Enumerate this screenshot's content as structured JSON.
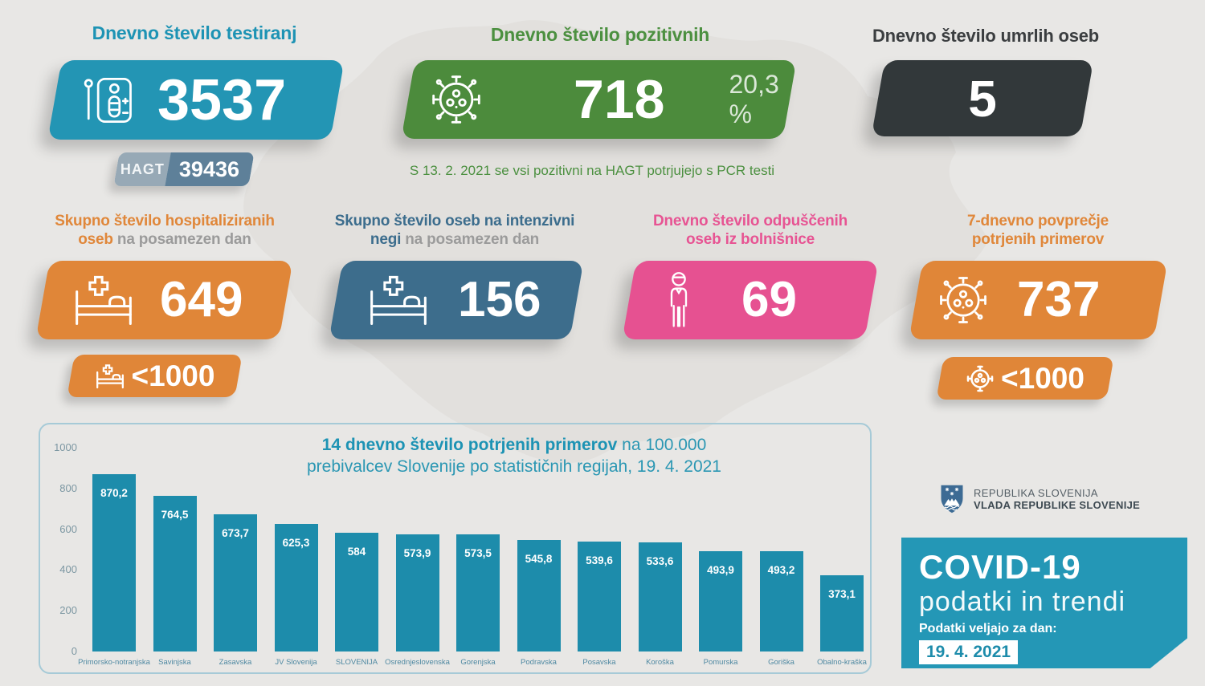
{
  "top": {
    "tests": {
      "title": "Dnevno število testiranj",
      "value": "3537",
      "hagt_label": "HAGT",
      "hagt_value": "39436"
    },
    "positives": {
      "title": "Dnevno število pozitivnih",
      "value": "718",
      "percent": "20,3 %"
    },
    "deaths": {
      "title": "Dnevno število umrlih oseb",
      "value": "5"
    },
    "note": "S 13. 2. 2021 se vsi pozitivni na HAGT potrjujejo s PCR testi"
  },
  "mid": {
    "hospitalized": {
      "title_line1": "Skupno število hospitaliziranih",
      "title_line2_bold": "oseb",
      "title_line2_rest": " na posamezen dan",
      "value": "649",
      "badge": "<1000"
    },
    "icu": {
      "title_line1": "Skupno število oseb na intenzivni",
      "title_line2_bold": "negi",
      "title_line2_rest": " na posamezen dan",
      "value": "156"
    },
    "discharged": {
      "title_line1": "Dnevno število odpuščenih",
      "title_line2": "oseb iz bolnišnice",
      "value": "69"
    },
    "avg7": {
      "title_line1": "7-dnevno povprečje",
      "title_line2": "potrjenih primerov",
      "value": "737",
      "badge": "<1000"
    }
  },
  "chart_data": {
    "type": "bar",
    "title_bold": "14 dnevno število potrjenih primerov",
    "title_rest": " na 100.000 prebivalcev Slovenije po statističnih regijah, 19. 4. 2021",
    "categories": [
      "Primorsko-notranjska",
      "Savinjska",
      "Zasavska",
      "JV Slovenija",
      "SLOVENIJA",
      "Osrednjeslovenska",
      "Gorenjska",
      "Podravska",
      "Posavska",
      "Koroška",
      "Pomurska",
      "Goriška",
      "Obalno-kraška"
    ],
    "values": [
      870.2,
      764.5,
      673.7,
      625.3,
      584,
      573.9,
      573.5,
      545.8,
      539.6,
      533.6,
      493.9,
      493.2,
      373.1
    ],
    "value_labels": [
      "870,2",
      "764,5",
      "673,7",
      "625,3",
      "584",
      "573,9",
      "573,5",
      "545,8",
      "539,6",
      "533,6",
      "493,9",
      "493,2",
      "373,1"
    ],
    "yticks": [
      1000,
      800,
      600,
      400,
      200,
      0
    ],
    "ylim": [
      0,
      1000
    ],
    "bar_color": "#1d8cab",
    "grid": false,
    "legend": "none"
  },
  "footer": {
    "gov_line1": "REPUBLIKA SLOVENIJA",
    "gov_line2": "VLADA REPUBLIKE SLOVENIJE",
    "covid_title": "COVID-19",
    "covid_subtitle": "podatki in trendi",
    "date_label": "Podatki veljajo za dan:",
    "date_value": "19. 4. 2021"
  },
  "colors": {
    "teal": "#2395b4",
    "green": "#4c8b3c",
    "dark": "#32383a",
    "orange": "#e08638",
    "steel": "#3d6d8c",
    "pink": "#e65191",
    "background": "#e8e7e5"
  }
}
